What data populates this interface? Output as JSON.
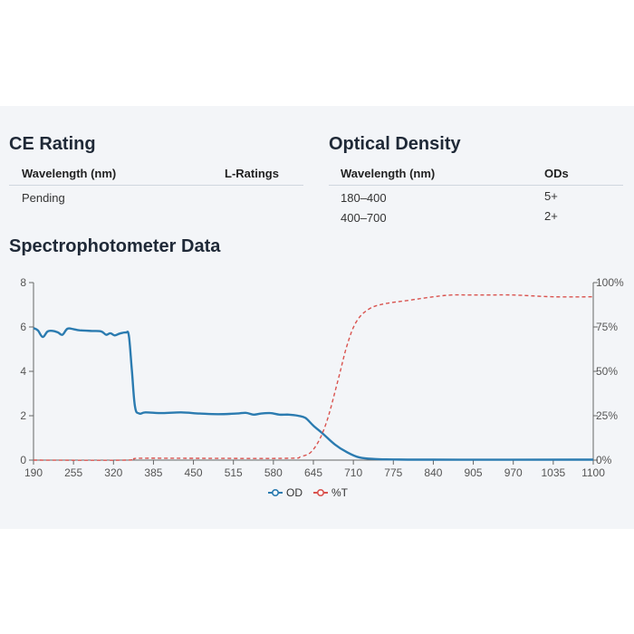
{
  "ce_rating": {
    "title": "CE Rating",
    "columns": [
      "Wavelength (nm)",
      "L-Ratings"
    ],
    "rows": [
      [
        "Pending",
        ""
      ]
    ]
  },
  "optical_density": {
    "title": "Optical Density",
    "columns": [
      "Wavelength (nm)",
      "ODs"
    ],
    "rows": [
      [
        "180–400",
        "5+"
      ],
      [
        "400–700",
        "2+"
      ]
    ]
  },
  "chart_section": {
    "title": "Spectrophotometer Data"
  },
  "chart_data": {
    "type": "line",
    "x_ticks": [
      190,
      255,
      320,
      385,
      450,
      515,
      580,
      645,
      710,
      775,
      840,
      905,
      970,
      1035,
      1100
    ],
    "y_left": {
      "range": [
        0,
        8
      ],
      "ticks": [
        0,
        2,
        4,
        6,
        8
      ]
    },
    "y_right": {
      "range": [
        0,
        100
      ],
      "ticks": [
        "0%",
        "25%",
        "50%",
        "75%",
        "100%"
      ]
    },
    "legend": [
      "OD",
      "%T"
    ],
    "legend_position": "bottom-center",
    "colors": {
      "OD": "#2b7bb0",
      "%T": "#d9534f"
    },
    "series": [
      {
        "name": "OD",
        "axis": "left",
        "style": "solid",
        "points": [
          [
            190,
            5.95
          ],
          [
            197,
            5.85
          ],
          [
            205,
            5.55
          ],
          [
            213,
            5.8
          ],
          [
            222,
            5.82
          ],
          [
            230,
            5.75
          ],
          [
            237,
            5.65
          ],
          [
            245,
            5.92
          ],
          [
            255,
            5.9
          ],
          [
            265,
            5.85
          ],
          [
            285,
            5.82
          ],
          [
            300,
            5.8
          ],
          [
            308,
            5.65
          ],
          [
            315,
            5.72
          ],
          [
            322,
            5.62
          ],
          [
            330,
            5.7
          ],
          [
            340,
            5.75
          ],
          [
            345,
            5.6
          ],
          [
            350,
            4.0
          ],
          [
            355,
            2.4
          ],
          [
            362,
            2.1
          ],
          [
            372,
            2.15
          ],
          [
            400,
            2.12
          ],
          [
            430,
            2.15
          ],
          [
            460,
            2.1
          ],
          [
            490,
            2.07
          ],
          [
            520,
            2.1
          ],
          [
            535,
            2.13
          ],
          [
            548,
            2.05
          ],
          [
            560,
            2.1
          ],
          [
            575,
            2.12
          ],
          [
            590,
            2.05
          ],
          [
            605,
            2.05
          ],
          [
            620,
            2.0
          ],
          [
            632,
            1.9
          ],
          [
            645,
            1.55
          ],
          [
            660,
            1.2
          ],
          [
            680,
            0.7
          ],
          [
            700,
            0.35
          ],
          [
            720,
            0.12
          ],
          [
            745,
            0.05
          ],
          [
            775,
            0.03
          ],
          [
            840,
            0.02
          ],
          [
            1100,
            0.02
          ]
        ]
      },
      {
        "name": "%T",
        "axis": "right",
        "style": "dashed",
        "points": [
          [
            190,
            0
          ],
          [
            340,
            0
          ],
          [
            360,
            1
          ],
          [
            450,
            1
          ],
          [
            600,
            1
          ],
          [
            625,
            2
          ],
          [
            645,
            6
          ],
          [
            665,
            20
          ],
          [
            685,
            45
          ],
          [
            700,
            65
          ],
          [
            715,
            78
          ],
          [
            735,
            85
          ],
          [
            760,
            88
          ],
          [
            800,
            90
          ],
          [
            840,
            92
          ],
          [
            870,
            93
          ],
          [
            900,
            93
          ],
          [
            930,
            93
          ],
          [
            970,
            93
          ],
          [
            1035,
            92
          ],
          [
            1100,
            92
          ]
        ]
      }
    ]
  }
}
